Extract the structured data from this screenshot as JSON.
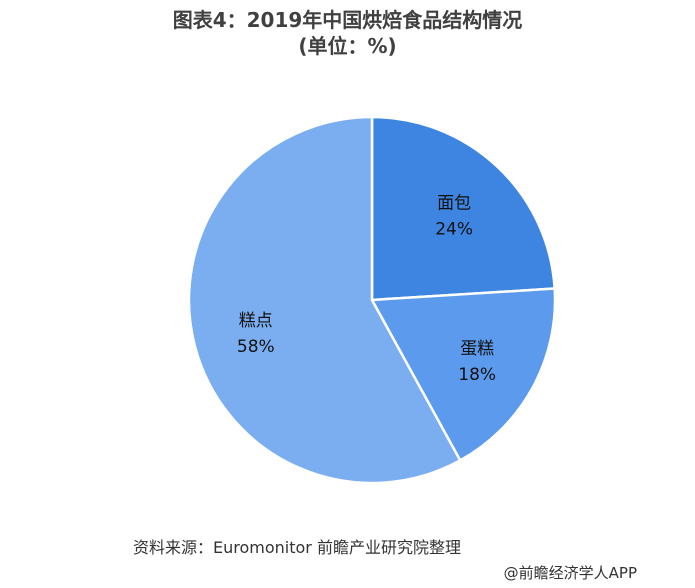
{
  "title_line1": "图表4：2019年中国烘焙食品结构情况",
  "title_line2": "(单位：%)",
  "chart_data": {
    "type": "pie",
    "start_angle_deg": 90,
    "direction": "clockwise",
    "slices": [
      {
        "label": "面包",
        "value": 24,
        "value_label": "24%",
        "color": "#3d85e0"
      },
      {
        "label": "蛋糕",
        "value": 18,
        "value_label": "18%",
        "color": "#5b9aec"
      },
      {
        "label": "糕点",
        "value": 58,
        "value_label": "58%",
        "color": "#7aaef0"
      }
    ]
  },
  "source_text": "资料来源：Euromonitor 前瞻产业研究院整理",
  "credit_text": "@前瞻经济学人APP",
  "colors": {
    "slice_border": "#ffffff",
    "text": "#333333"
  }
}
